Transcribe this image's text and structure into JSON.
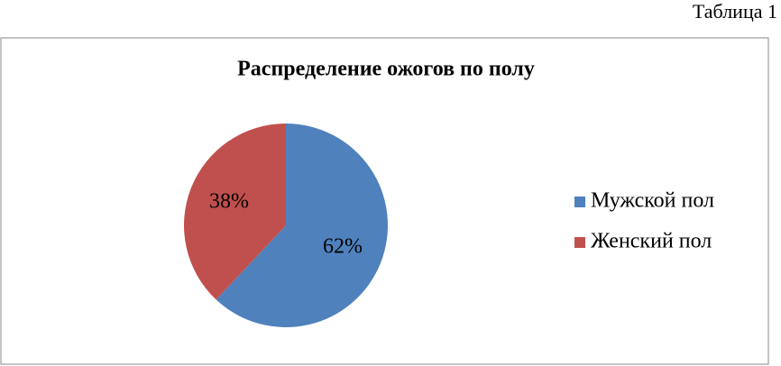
{
  "caption": "Таблица 1",
  "chart_data": {
    "type": "pie",
    "title": "Распределение ожогов по полу",
    "categories": [
      "Мужской пол",
      "Женский пол"
    ],
    "values": [
      62,
      38
    ],
    "value_labels": [
      "62%",
      "38%"
    ],
    "colors": [
      "#4f81bd",
      "#c0504d"
    ],
    "legend": "right"
  }
}
